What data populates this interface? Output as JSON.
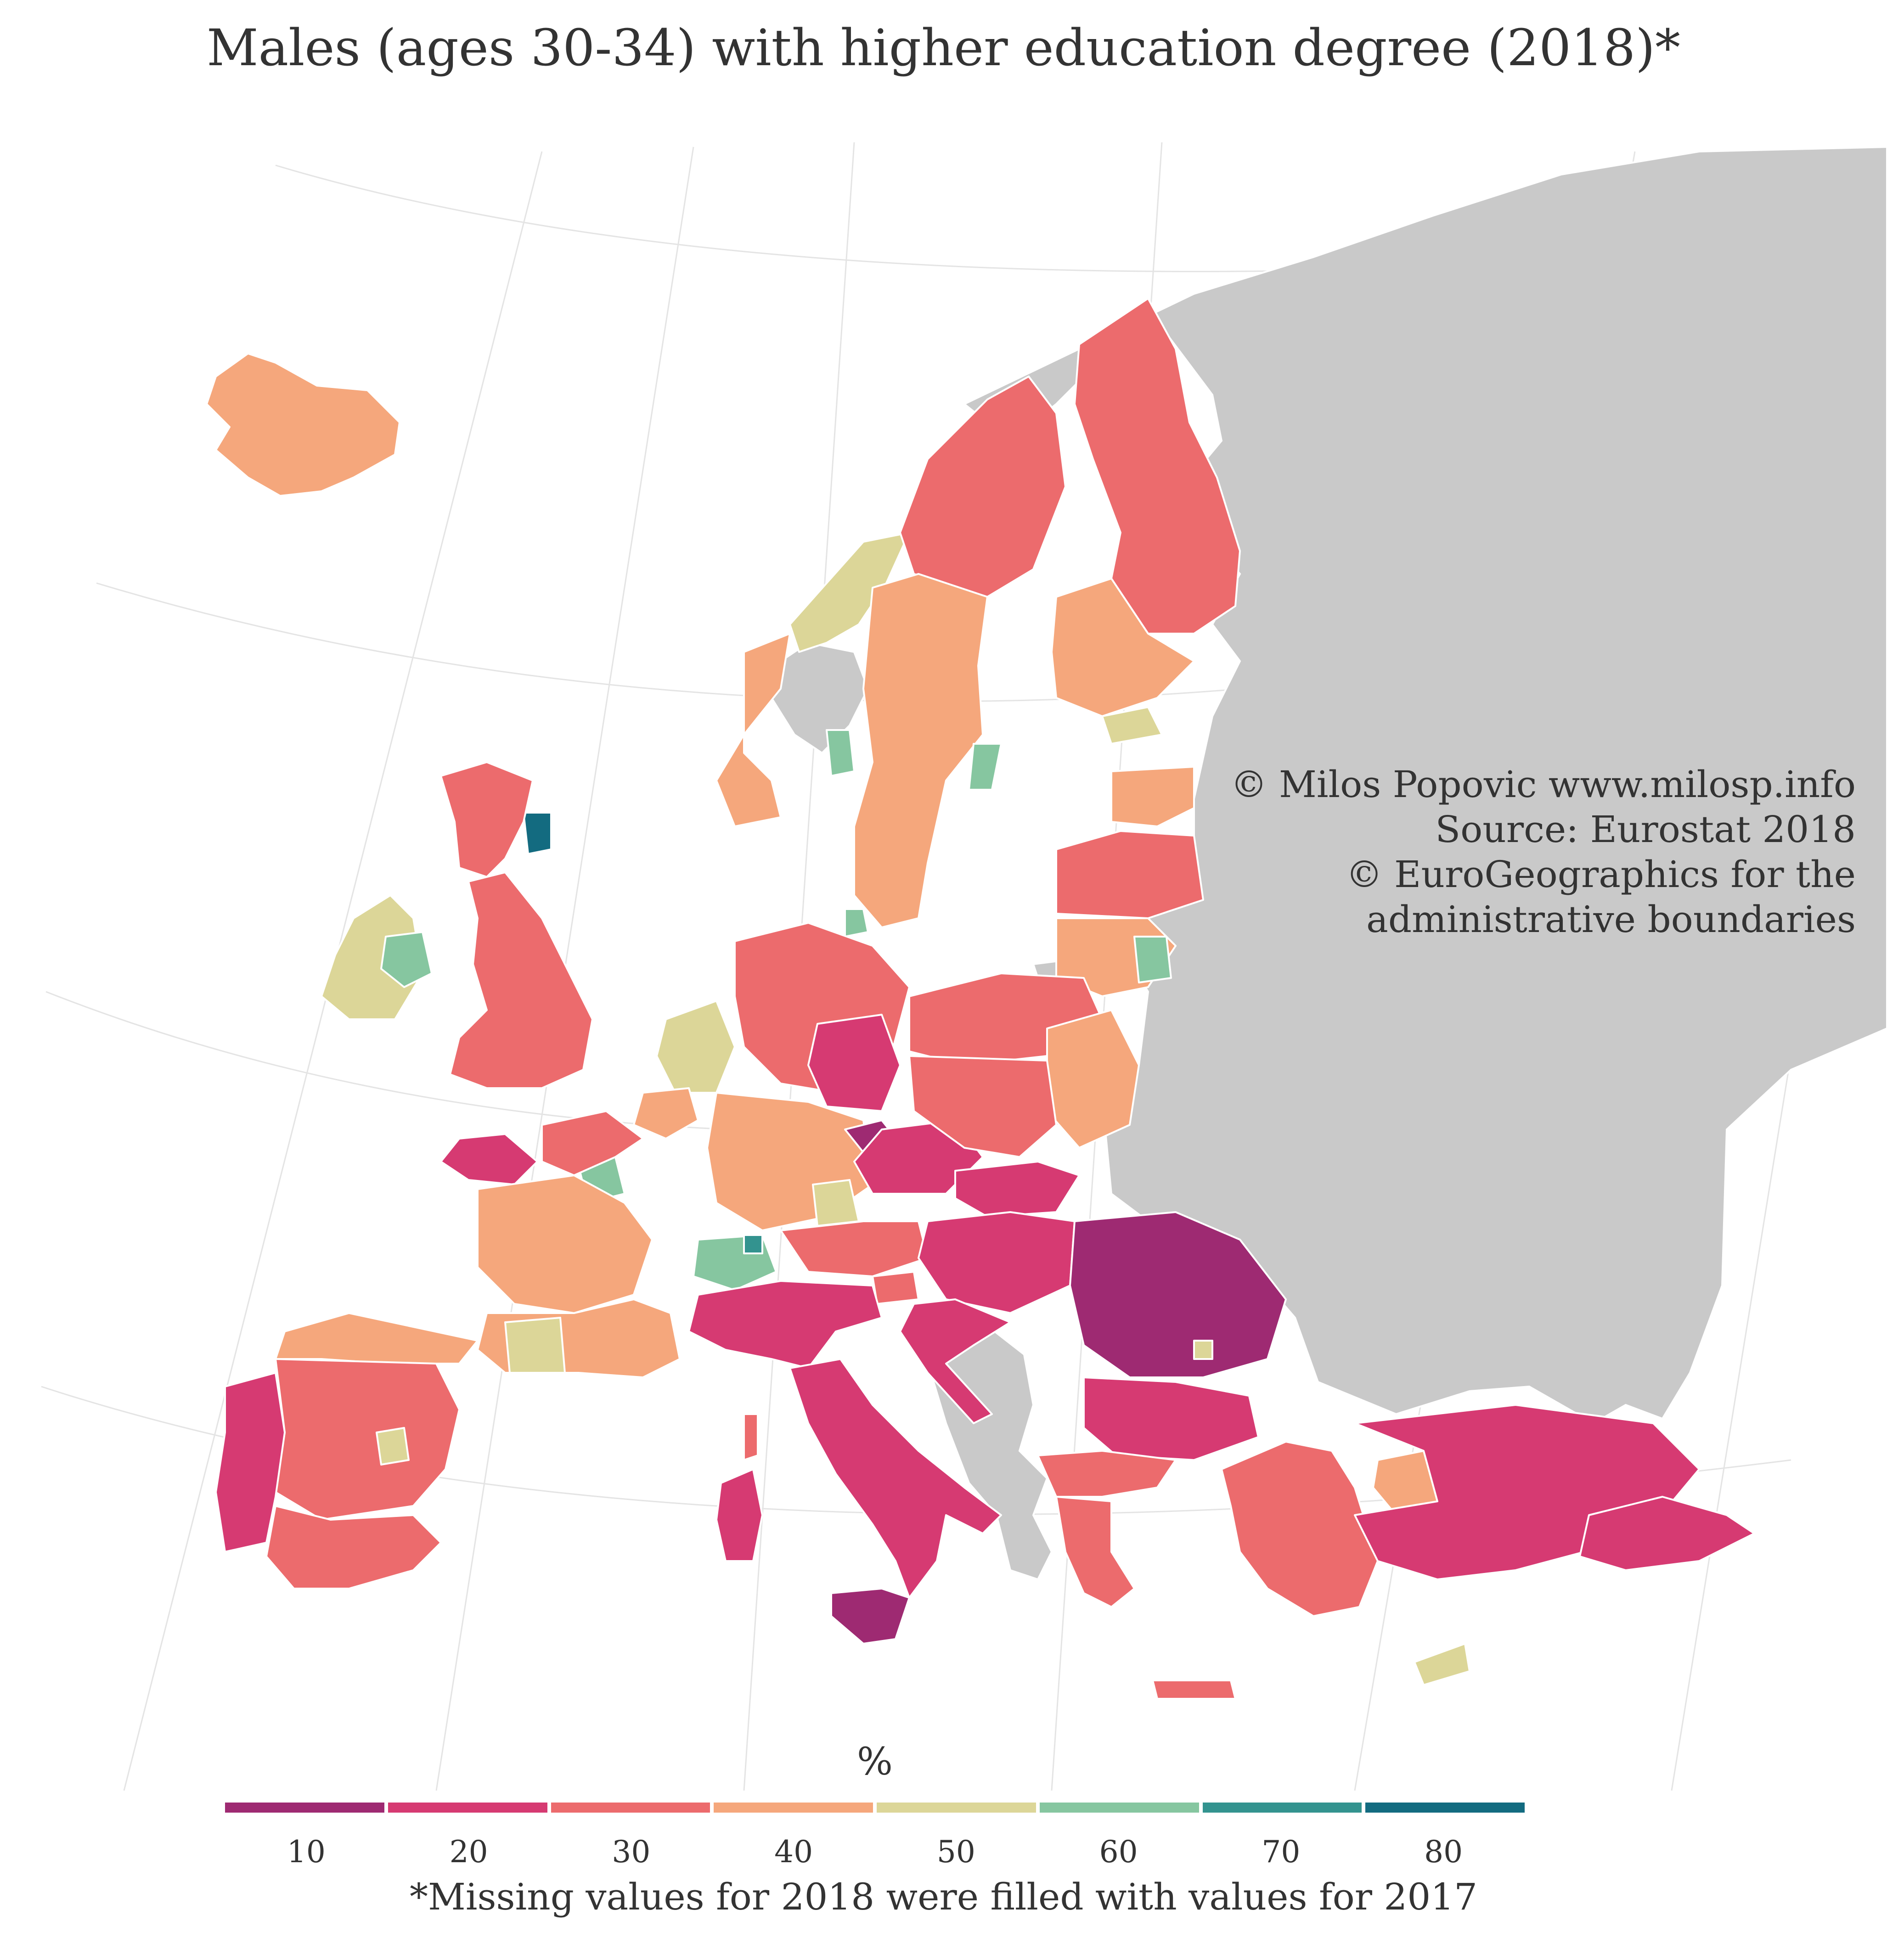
{
  "title": "Males (ages 30-34) with higher education degree (2018)*",
  "credits": {
    "line1": "© Milos Popovic www.milosp.info",
    "line2": "Source: Eurostat 2018",
    "line3": "© EuroGeographics for the",
    "line4": "administrative boundaries"
  },
  "legend": {
    "title": "%",
    "ticks": [
      "10",
      "20",
      "30",
      "40",
      "50",
      "60",
      "70",
      "80"
    ],
    "colors": [
      "#9e2a72",
      "#d63a72",
      "#ec6b6d",
      "#f5a77c",
      "#dcd698",
      "#86c6a0",
      "#33938f",
      "#136b80"
    ]
  },
  "footnote": "*Missing values for 2018 were filled with values for 2017",
  "colors": {
    "background": "#ffffff",
    "no_data_land": "#c9c9c9",
    "graticule": "#e4e4e4",
    "region_border": "#ffffff"
  },
  "chart_data": {
    "type": "choropleth",
    "title": "Males (ages 30-34) with higher education degree (2018)*",
    "legend_title": "%",
    "scale_ticks": [
      10,
      20,
      30,
      40,
      50,
      60,
      70,
      80
    ],
    "regions": [
      {
        "name": "Iceland",
        "value": 42
      },
      {
        "name": "Ireland (west)",
        "value": 48
      },
      {
        "name": "Ireland (Dublin)",
        "value": 58
      },
      {
        "name": "Scotland (Aberdeen)",
        "value": 78
      },
      {
        "name": "Scotland (north)",
        "value": 33
      },
      {
        "name": "England (London)",
        "value": 56
      },
      {
        "name": "England (south-east)",
        "value": 33
      },
      {
        "name": "Norway (Oslo)",
        "value": 60
      },
      {
        "name": "Norway (north)",
        "value": 48
      },
      {
        "name": "Norway (west)",
        "value": 43
      },
      {
        "name": "Sweden (north)",
        "value": 32
      },
      {
        "name": "Sweden (south)",
        "value": 40
      },
      {
        "name": "Sweden (Stockholm)",
        "value": 58
      },
      {
        "name": "Finland (north)",
        "value": 31
      },
      {
        "name": "Finland (south)",
        "value": 35
      },
      {
        "name": "Finland (Helsinki)",
        "value": 47
      },
      {
        "name": "Estonia",
        "value": 38
      },
      {
        "name": "Latvia",
        "value": 30
      },
      {
        "name": "Lithuania",
        "value": 41
      },
      {
        "name": "Lithuania (Vilnius)",
        "value": 62
      },
      {
        "name": "Denmark (Copenhagen)",
        "value": 58
      },
      {
        "name": "Netherlands",
        "value": 45
      },
      {
        "name": "Belgium",
        "value": 42
      },
      {
        "name": "France (Paris)",
        "value": 55
      },
      {
        "name": "France (north-west)",
        "value": 32
      },
      {
        "name": "France (Brittany)",
        "value": 20
      },
      {
        "name": "France (centre)",
        "value": 38
      },
      {
        "name": "France (south)",
        "value": 40
      },
      {
        "name": "France (Toulouse)",
        "value": 50
      },
      {
        "name": "Germany (north)",
        "value": 25
      },
      {
        "name": "Germany (east)",
        "value": 18
      },
      {
        "name": "Germany (south)",
        "value": 35
      },
      {
        "name": "Germany (Munich)",
        "value": 50
      },
      {
        "name": "Switzerland",
        "value": 58
      },
      {
        "name": "Switzerland (Zurich)",
        "value": 70
      },
      {
        "name": "Austria",
        "value": 34
      },
      {
        "name": "Czechia (north-west)",
        "value": 12
      },
      {
        "name": "Czechia",
        "value": 22
      },
      {
        "name": "Poland (north)",
        "value": 33
      },
      {
        "name": "Poland (east)",
        "value": 38
      },
      {
        "name": "Poland (south)",
        "value": 27
      },
      {
        "name": "Slovakia",
        "value": 22
      },
      {
        "name": "Hungary",
        "value": 20
      },
      {
        "name": "Romania",
        "value": 13
      },
      {
        "name": "Romania (Bucharest)",
        "value": 48
      },
      {
        "name": "Bulgaria",
        "value": 22
      },
      {
        "name": "Croatia",
        "value": 22
      },
      {
        "name": "Slovenia",
        "value": 30
      },
      {
        "name": "Italy (north)",
        "value": 22
      },
      {
        "name": "Italy (south)",
        "value": 17
      },
      {
        "name": "Sicily",
        "value": 14
      },
      {
        "name": "Sardinia",
        "value": 18
      },
      {
        "name": "Corsica",
        "value": 30
      },
      {
        "name": "Spain (north)",
        "value": 40
      },
      {
        "name": "Spain (centre)",
        "value": 33
      },
      {
        "name": "Spain (Madrid)",
        "value": 45
      },
      {
        "name": "Spain (south)",
        "value": 26
      },
      {
        "name": "Portugal",
        "value": 22
      },
      {
        "name": "Greece (north)",
        "value": 30
      },
      {
        "name": "Greece (south)",
        "value": 33
      },
      {
        "name": "Crete",
        "value": 30
      },
      {
        "name": "Cyprus",
        "value": 50
      },
      {
        "name": "Turkey (west)",
        "value": 30
      },
      {
        "name": "Turkey (Ankara)",
        "value": 40
      },
      {
        "name": "Turkey (east)",
        "value": 20
      },
      {
        "name": "Turkey (south-east)",
        "value": 15
      }
    ]
  }
}
